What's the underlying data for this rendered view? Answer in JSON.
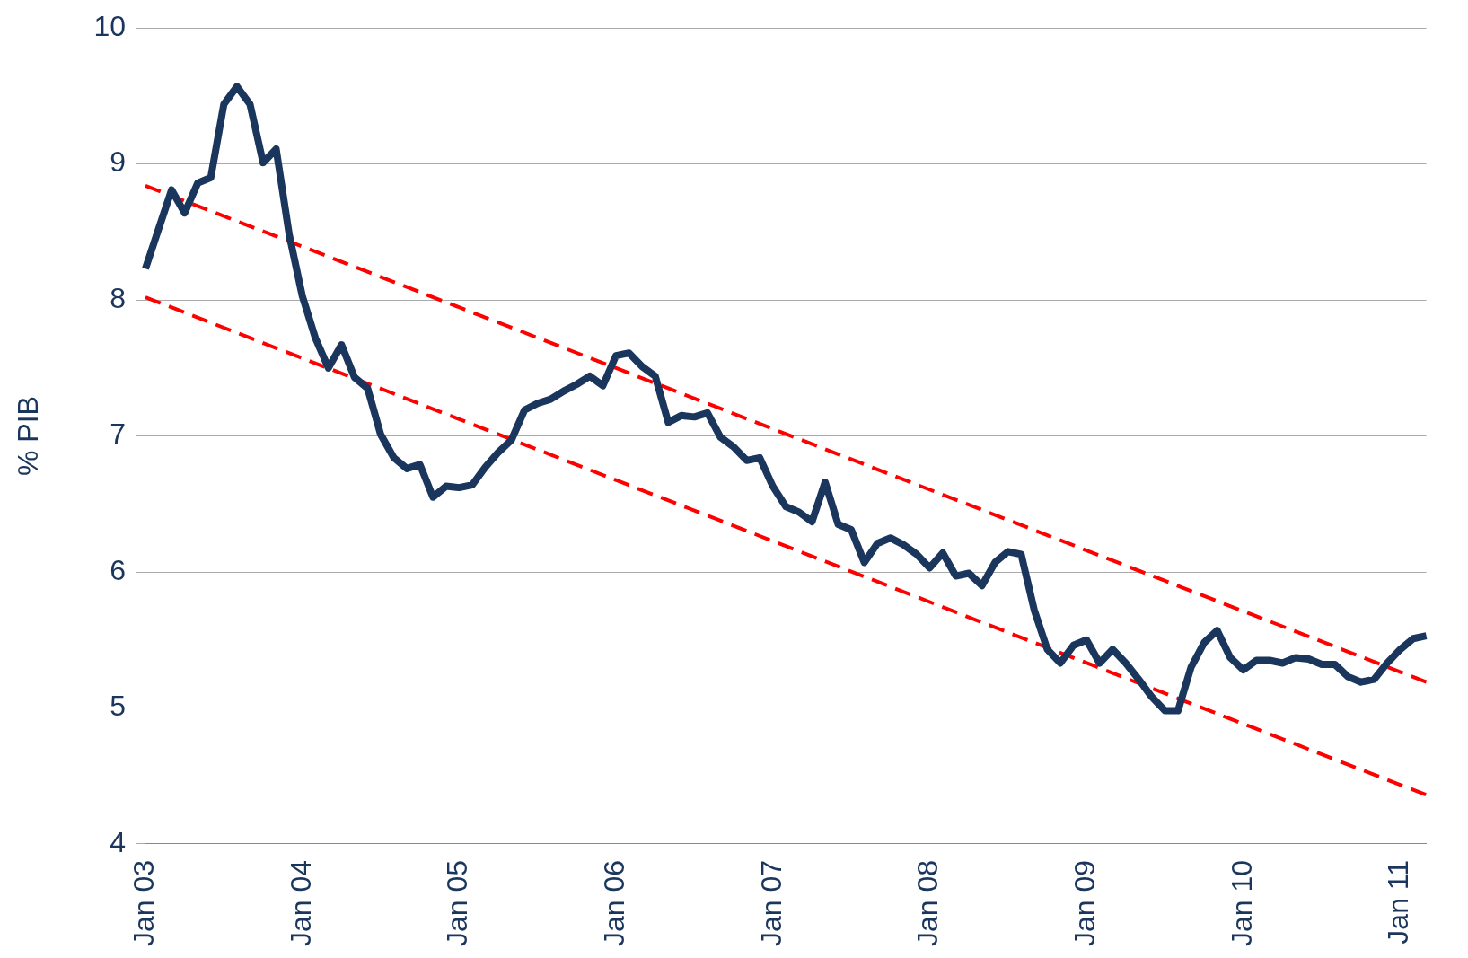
{
  "chart_data": {
    "type": "line",
    "ylabel": "% PIB",
    "ylim": [
      4,
      10
    ],
    "yticks": [
      4,
      5,
      6,
      7,
      8,
      9,
      10
    ],
    "grid": "y",
    "legend": false,
    "categories": [
      "Jan 03",
      null,
      null,
      null,
      null,
      null,
      null,
      null,
      null,
      null,
      null,
      null,
      "Jan 04",
      null,
      null,
      null,
      null,
      null,
      null,
      null,
      null,
      null,
      null,
      null,
      "Jan 05",
      null,
      null,
      null,
      null,
      null,
      null,
      null,
      null,
      null,
      null,
      null,
      "Jan 06",
      null,
      null,
      null,
      null,
      null,
      null,
      null,
      null,
      null,
      null,
      null,
      "Jan 07",
      null,
      null,
      null,
      null,
      null,
      null,
      null,
      null,
      null,
      null,
      null,
      "Jan 08",
      null,
      null,
      null,
      null,
      null,
      null,
      null,
      null,
      null,
      null,
      null,
      "Jan 09",
      null,
      null,
      null,
      null,
      null,
      null,
      null,
      null,
      null,
      null,
      null,
      "Jan 10",
      null,
      null,
      null,
      null,
      null,
      null,
      null,
      null,
      null,
      null,
      null,
      "Jan 11",
      null,
      null
    ],
    "series": [
      {
        "color": "#1b365d",
        "line_style": "solid",
        "values": [
          8.23,
          8.52,
          8.81,
          8.64,
          8.86,
          8.9,
          9.44,
          9.57,
          9.44,
          9.01,
          9.11,
          8.48,
          8.03,
          7.72,
          7.5,
          7.67,
          7.43,
          7.35,
          7.01,
          6.84,
          6.76,
          6.79,
          6.55,
          6.63,
          6.62,
          6.64,
          6.77,
          6.88,
          6.97,
          7.19,
          7.24,
          7.27,
          7.33,
          7.38,
          7.44,
          7.37,
          7.59,
          7.61,
          7.51,
          7.44,
          7.1,
          7.15,
          7.14,
          7.17,
          6.99,
          6.92,
          6.82,
          6.84,
          6.63,
          6.48,
          6.44,
          6.37,
          6.66,
          6.35,
          6.31,
          6.07,
          6.21,
          6.25,
          6.2,
          6.13,
          6.03,
          6.14,
          5.97,
          5.99,
          5.9,
          6.07,
          6.15,
          6.13,
          5.72,
          5.43,
          5.33,
          5.46,
          5.5,
          5.33,
          5.43,
          5.33,
          5.21,
          5.08,
          4.98,
          4.98,
          5.3,
          5.48,
          5.57,
          5.37,
          5.28,
          5.35,
          5.35,
          5.33,
          5.37,
          5.36,
          5.32,
          5.32,
          5.23,
          5.19,
          5.21,
          5.33,
          5.43,
          5.51,
          5.53
        ]
      },
      {
        "color": "#ff0000",
        "line_style": "dashed",
        "values": [
          8.84,
          null,
          null,
          null,
          null,
          null,
          null,
          null,
          null,
          null,
          null,
          null,
          null,
          null,
          null,
          null,
          null,
          null,
          null,
          null,
          null,
          null,
          null,
          null,
          null,
          null,
          null,
          null,
          null,
          null,
          null,
          null,
          null,
          null,
          null,
          null,
          null,
          null,
          null,
          null,
          null,
          null,
          null,
          null,
          null,
          null,
          null,
          null,
          null,
          null,
          null,
          null,
          null,
          null,
          null,
          null,
          null,
          null,
          null,
          null,
          null,
          null,
          null,
          null,
          null,
          null,
          null,
          null,
          null,
          null,
          null,
          null,
          null,
          null,
          null,
          null,
          null,
          null,
          null,
          null,
          null,
          null,
          null,
          null,
          null,
          null,
          null,
          null,
          null,
          null,
          null,
          null,
          null,
          null,
          null,
          null,
          null,
          null,
          5.19
        ]
      },
      {
        "color": "#ff0000",
        "line_style": "dashed",
        "values": [
          8.02,
          null,
          null,
          null,
          null,
          null,
          null,
          null,
          null,
          null,
          null,
          null,
          null,
          null,
          null,
          null,
          null,
          null,
          null,
          null,
          null,
          null,
          null,
          null,
          null,
          null,
          null,
          null,
          null,
          null,
          null,
          null,
          null,
          null,
          null,
          null,
          null,
          null,
          null,
          null,
          null,
          null,
          null,
          null,
          null,
          null,
          null,
          null,
          null,
          null,
          null,
          null,
          null,
          null,
          null,
          null,
          null,
          null,
          null,
          null,
          null,
          null,
          null,
          null,
          null,
          null,
          null,
          null,
          null,
          null,
          null,
          null,
          null,
          null,
          null,
          null,
          null,
          null,
          null,
          null,
          null,
          null,
          null,
          null,
          null,
          null,
          null,
          null,
          null,
          null,
          null,
          null,
          null,
          null,
          null,
          null,
          null,
          null,
          4.36
        ]
      }
    ]
  }
}
